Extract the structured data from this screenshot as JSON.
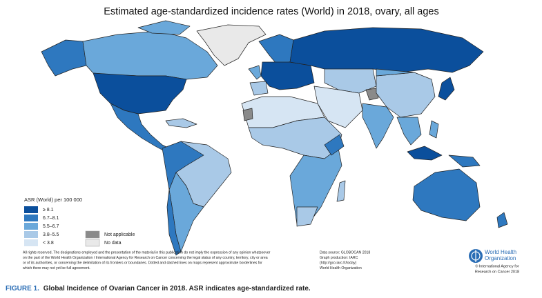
{
  "title": "Estimated age-standardized incidence rates (World) in 2018, ovary, all ages",
  "legend": {
    "title": "ASR (World) per 100 000",
    "items": [
      {
        "label": "≥ 8.1",
        "color": "#0b4f9c"
      },
      {
        "label": "6.7–8.1",
        "color": "#2e78bf"
      },
      {
        "label": "5.5–6.7",
        "color": "#6aa8da"
      },
      {
        "label": "3.8–5.5",
        "color": "#a9c9e7"
      },
      {
        "label": "< 3.8",
        "color": "#d6e5f3"
      }
    ],
    "other": [
      {
        "label": "Not applicable",
        "color": "#8a8a8a"
      },
      {
        "label": "No data",
        "color": "#e9e9e9"
      }
    ]
  },
  "disclaimer": [
    "All rights reserved. The designations employed and the presentation of the material in this publication do not imply the expression of any opinion whatsoever",
    "on the part of the World Health Organization / International Agency for Research on Cancer concerning the legal status of any country, territory, city or area",
    "or of its authorities, or concerning the delimitation of its frontiers or boundaries. Dotted and dashed lines on maps represent approximate borderlines for",
    "which there may not yet be full agreement."
  ],
  "source": [
    "Data source: GLOBOCAN 2018",
    "Graph production: IARC",
    "(http://gco.iarc.fr/today)",
    "World Health Organization"
  ],
  "logo": {
    "name": [
      "World Health",
      "Organization"
    ],
    "credit": [
      "© International Agency for",
      "Research on Cancer 2018"
    ]
  },
  "caption": {
    "label": "FIGURE 1.",
    "text": "Global Incidence of Ovarian Cancer in 2018. ASR indicates age-standardized rate."
  }
}
